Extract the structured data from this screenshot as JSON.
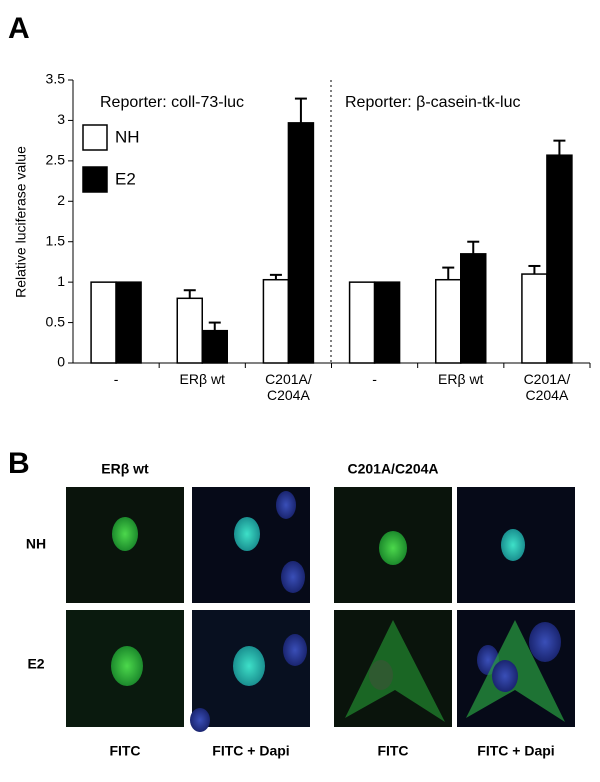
{
  "panel_a_label": "A",
  "chart_data": {
    "type": "bar",
    "y_label": "Relative luciferase value",
    "annotations": [
      "Reporter: coll-73-luc",
      "Reporter: β-casein-tk-luc"
    ],
    "categories": [
      "-",
      "ERβ wt",
      "C201A/C204A",
      "-",
      "ERβ wt",
      "C201A/C204A"
    ],
    "series": [
      {
        "name": "NH",
        "color": "#ffffff",
        "values": [
          1,
          0.8,
          1.03,
          1,
          1.03,
          1.1
        ],
        "errors": [
          0,
          0.1,
          0.06,
          0,
          0.15,
          0.1
        ]
      },
      {
        "name": "E2",
        "color": "#000000",
        "values": [
          1,
          0.4,
          2.97,
          1,
          1.35,
          2.57
        ],
        "errors": [
          0,
          0.1,
          0.3,
          0,
          0.15,
          0.18
        ]
      }
    ],
    "ylim": [
      0,
      3.5
    ],
    "yticks": [
      0,
      0.5,
      1,
      1.5,
      2,
      2.5,
      3,
      3.5
    ],
    "legend": "upper left"
  },
  "panel_b": {
    "label": "B",
    "columns": [
      "ERβ wt",
      "C201A/C204A"
    ],
    "rows": [
      "NH",
      "E2"
    ],
    "image_labels": [
      "FITC",
      "FITC + Dapi",
      "FITC",
      "FITC + Dapi"
    ]
  }
}
